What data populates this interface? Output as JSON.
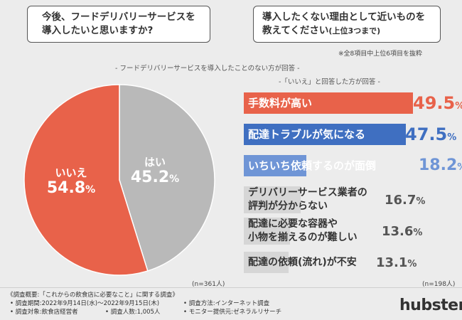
{
  "colors": {
    "orange": "#e8624a",
    "blue": "#3f6fc1",
    "light_blue": "#6f95d6",
    "gray_slice": "#b9b9b9",
    "background": "#ececec"
  },
  "question_left": {
    "line1": "今後、フードデリバリーサービスを",
    "line2": "導入したいと思いますか?"
  },
  "question_right": {
    "line1": "導入したくない理由として近いものを",
    "line2": "教えてください",
    "line2_sub": "(上位3つまで)"
  },
  "note_top": "※全8項目中上位6項目を抜粋",
  "header_pie": "- フードデリバリーサービスを導入したことのない方が回答 -",
  "header_bars": "-「いいえ」と回答した方が回答 -",
  "n_pie": "(n=361人)",
  "n_bars": "(n=198人)",
  "chart_data": [
    {
      "type": "pie",
      "categories": [
        "いいえ",
        "はい"
      ],
      "values": [
        54.8,
        45.2
      ],
      "unit": "%",
      "colors": [
        "#e8624a",
        "#b9b9b9"
      ]
    },
    {
      "type": "bar",
      "orientation": "horizontal",
      "categories": [
        "手数料が高い",
        "配達トラブルが気になる",
        "いちいち依頼するのが面倒",
        "デリバリーサービス業者の評判が分からない",
        "配達に必要な容器や小物を揃えるのが難しい",
        "配達の依頼(流れ)が不安"
      ],
      "values": [
        49.5,
        47.5,
        18.2,
        16.7,
        13.6,
        13.1
      ],
      "unit": "%",
      "xlim": [
        0,
        49.5
      ]
    }
  ],
  "pie_labels": {
    "no": {
      "name": "いいえ",
      "num": "54.8",
      "unit": "%"
    },
    "yes": {
      "name": "はい",
      "num": "45.2",
      "unit": "%"
    }
  },
  "bar_rows": [
    {
      "label1": "手数料が高い",
      "label2": "",
      "num": "49.5",
      "unit": "%"
    },
    {
      "label1": "配達トラブルが気になる",
      "label2": "",
      "num": "47.5",
      "unit": "%"
    },
    {
      "label1": "いちいち依頼するのが面倒",
      "label2": "",
      "num": "18.2",
      "unit": "%"
    },
    {
      "label1": "デリバリーサービス業者の",
      "label2": "評判が分からない",
      "num": "16.7",
      "unit": "%"
    },
    {
      "label1": "配達に必要な容器や",
      "label2": "小物を揃えるのが難しい",
      "num": "13.6",
      "unit": "%"
    },
    {
      "label1": "配達の依頼(流れ)が不安",
      "label2": "",
      "num": "13.1",
      "unit": "%"
    }
  ],
  "footer": {
    "title": "《調査概要:「これからの飲食店に必要なこと」に関する調査》",
    "period": "• 調査期間:2022年9月14日(水)〜2022年9月15日(木)",
    "method": "• 調査方法:インターネット調査",
    "target": "• 調査対象:飲食店経営者",
    "count": "• 調査人数:1,005人",
    "provider": "• モニター提供元:ゼネラルリサーチ"
  },
  "logo": "hubster"
}
